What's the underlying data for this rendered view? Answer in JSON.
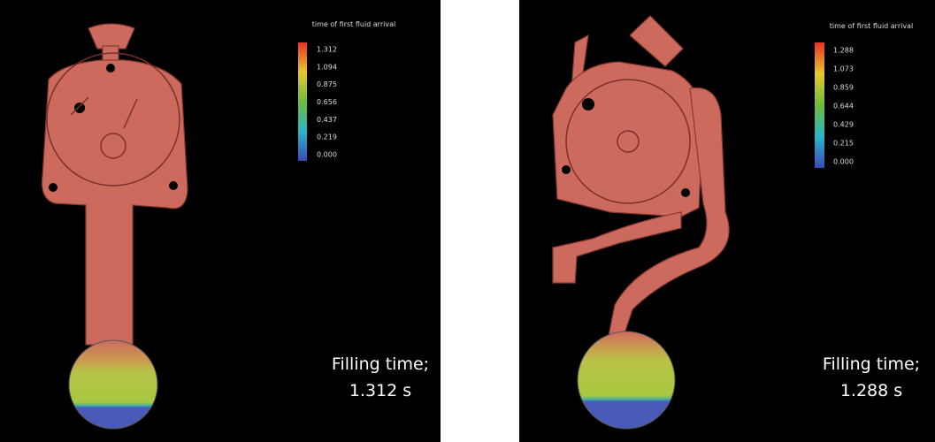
{
  "panels": [
    {
      "legend_title": "time of first fluid arrival",
      "legend_ticks": [
        "1.312",
        "1.094",
        "0.875",
        "0.656",
        "0.437",
        "0.219",
        "0.000"
      ],
      "caption": [
        "Filling time;",
        "1.312 s"
      ]
    },
    {
      "legend_title": "time of first fluid arrival",
      "legend_ticks": [
        "1.288",
        "1.073",
        "0.859",
        "0.644",
        "0.429",
        "0.215",
        "0.000"
      ],
      "caption": [
        "Filling time;",
        "1.288 s"
      ]
    }
  ]
}
